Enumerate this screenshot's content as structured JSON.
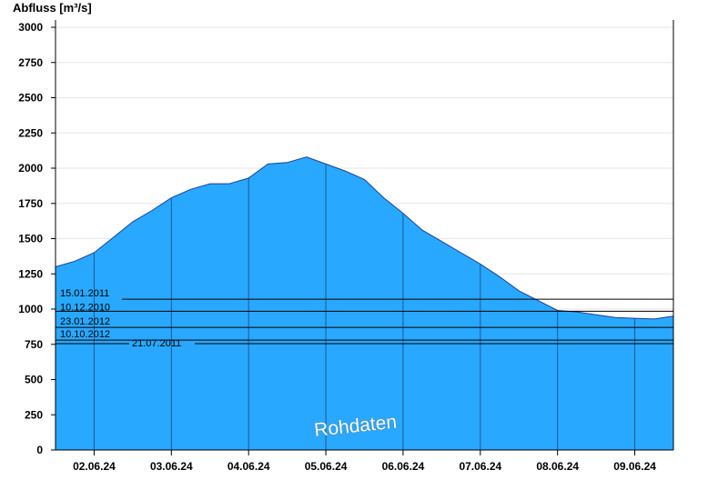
{
  "chart_data": {
    "type": "area",
    "ylabel": "Abfluss [m³/s]",
    "ylim": [
      0,
      3000
    ],
    "yticks": [
      "0",
      "250",
      "500",
      "750",
      "1000",
      "1250",
      "1500",
      "1750",
      "2000",
      "2250",
      "2500",
      "2750",
      "3000"
    ],
    "x_range_days": [
      1.5,
      9.5
    ],
    "x_tick_labels": [
      "02.06.24",
      "03.06.24",
      "04.06.24",
      "05.06.24",
      "06.06.24",
      "07.06.24",
      "08.06.24",
      "09.06.24"
    ],
    "grid": "horizontal + day separators",
    "area_color": "#29a8ff",
    "series": [
      {
        "x_day": [
          1.5,
          1.75,
          2.0,
          2.25,
          2.5,
          2.75,
          3.0,
          3.25,
          3.5,
          3.75,
          4.0,
          4.25,
          4.5,
          4.75,
          5.0,
          5.25,
          5.5,
          5.75,
          6.0,
          6.25,
          6.5,
          6.75,
          7.0,
          7.25,
          7.5,
          7.75,
          8.0,
          8.25,
          8.5,
          8.75,
          9.0,
          9.25,
          9.5
        ],
        "values": [
          1300,
          1340,
          1400,
          1510,
          1620,
          1700,
          1790,
          1850,
          1890,
          1890,
          1930,
          2030,
          2040,
          2080,
          2030,
          1980,
          1920,
          1790,
          1680,
          1560,
          1480,
          1400,
          1320,
          1230,
          1130,
          1060,
          990,
          980,
          960,
          940,
          935,
          930,
          950
        ]
      }
    ],
    "reference_lines": [
      {
        "label": "15.01.2011",
        "value": 1070
      },
      {
        "label": "10.12.2010",
        "value": 985
      },
      {
        "label": "23.01.2012",
        "value": 870
      },
      {
        "label": "10.10.2012",
        "value": 780
      },
      {
        "label": "21.07.2011",
        "value": 755
      }
    ],
    "watermark": "Rohdaten"
  }
}
